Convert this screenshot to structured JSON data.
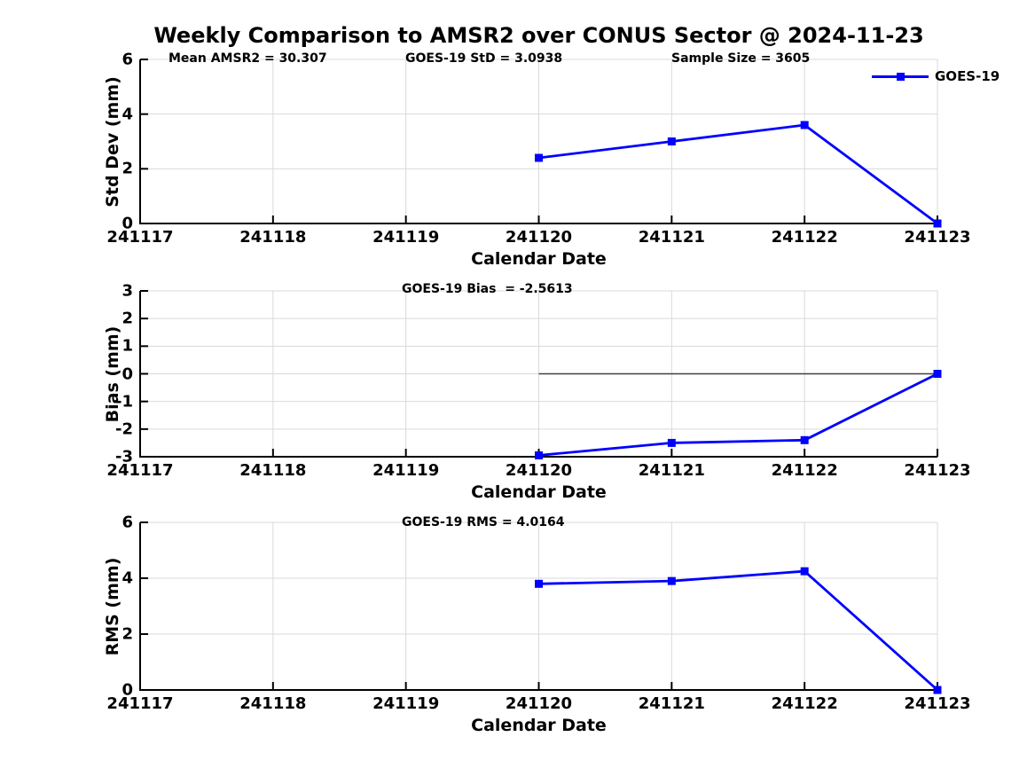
{
  "title": "Weekly Comparison to AMSR2 over CONUS Sector @ 2024-11-23",
  "legend": {
    "label": "GOES-19",
    "position": "top-right"
  },
  "colors": {
    "line": "#0000ff",
    "grid": "#d9d9d9",
    "zero_line": "#404040",
    "axis": "#000000",
    "text": "#000000",
    "background": "#ffffff"
  },
  "chart_data": [
    {
      "type": "line",
      "ylabel": "Std Dev (mm)",
      "xlabel": "Calendar Date",
      "ylim": [
        0,
        6
      ],
      "yticks": [
        0,
        2,
        4,
        6
      ],
      "x_categories": [
        "241117",
        "241118",
        "241119",
        "241120",
        "241121",
        "241122",
        "241123"
      ],
      "grid": true,
      "annotations": [
        {
          "text": "Mean AMSR2 = 30.307"
        },
        {
          "text": "GOES-19 StD = 3.0938"
        },
        {
          "text": "Sample Size = 3605"
        }
      ],
      "series": [
        {
          "name": "GOES-19",
          "x": [
            "241120",
            "241121",
            "241122",
            "241123"
          ],
          "values": [
            2.4,
            3.0,
            3.6,
            0.0
          ]
        }
      ]
    },
    {
      "type": "line",
      "ylabel": "Bias (mm)",
      "xlabel": "Calendar Date",
      "ylim": [
        -3,
        3
      ],
      "yticks": [
        -3,
        -2,
        -1,
        0,
        1,
        2,
        3
      ],
      "x_categories": [
        "241117",
        "241118",
        "241119",
        "241120",
        "241121",
        "241122",
        "241123"
      ],
      "grid": true,
      "annotations": [
        {
          "text": "GOES-19 Bias  = -2.5613"
        }
      ],
      "zero_line": {
        "y": 0,
        "x_start": "241120",
        "x_end": "241123"
      },
      "series": [
        {
          "name": "GOES-19",
          "x": [
            "241120",
            "241121",
            "241122",
            "241123"
          ],
          "values": [
            -2.95,
            -2.5,
            -2.4,
            0.0
          ]
        }
      ]
    },
    {
      "type": "line",
      "ylabel": "RMS (mm)",
      "xlabel": "Calendar Date",
      "ylim": [
        0,
        6
      ],
      "yticks": [
        0,
        2,
        4,
        6
      ],
      "x_categories": [
        "241117",
        "241118",
        "241119",
        "241120",
        "241121",
        "241122",
        "241123"
      ],
      "grid": true,
      "annotations": [
        {
          "text": "GOES-19 RMS = 4.0164"
        }
      ],
      "series": [
        {
          "name": "GOES-19",
          "x": [
            "241120",
            "241121",
            "241122",
            "241123"
          ],
          "values": [
            3.8,
            3.9,
            4.25,
            0.0
          ]
        }
      ]
    }
  ]
}
